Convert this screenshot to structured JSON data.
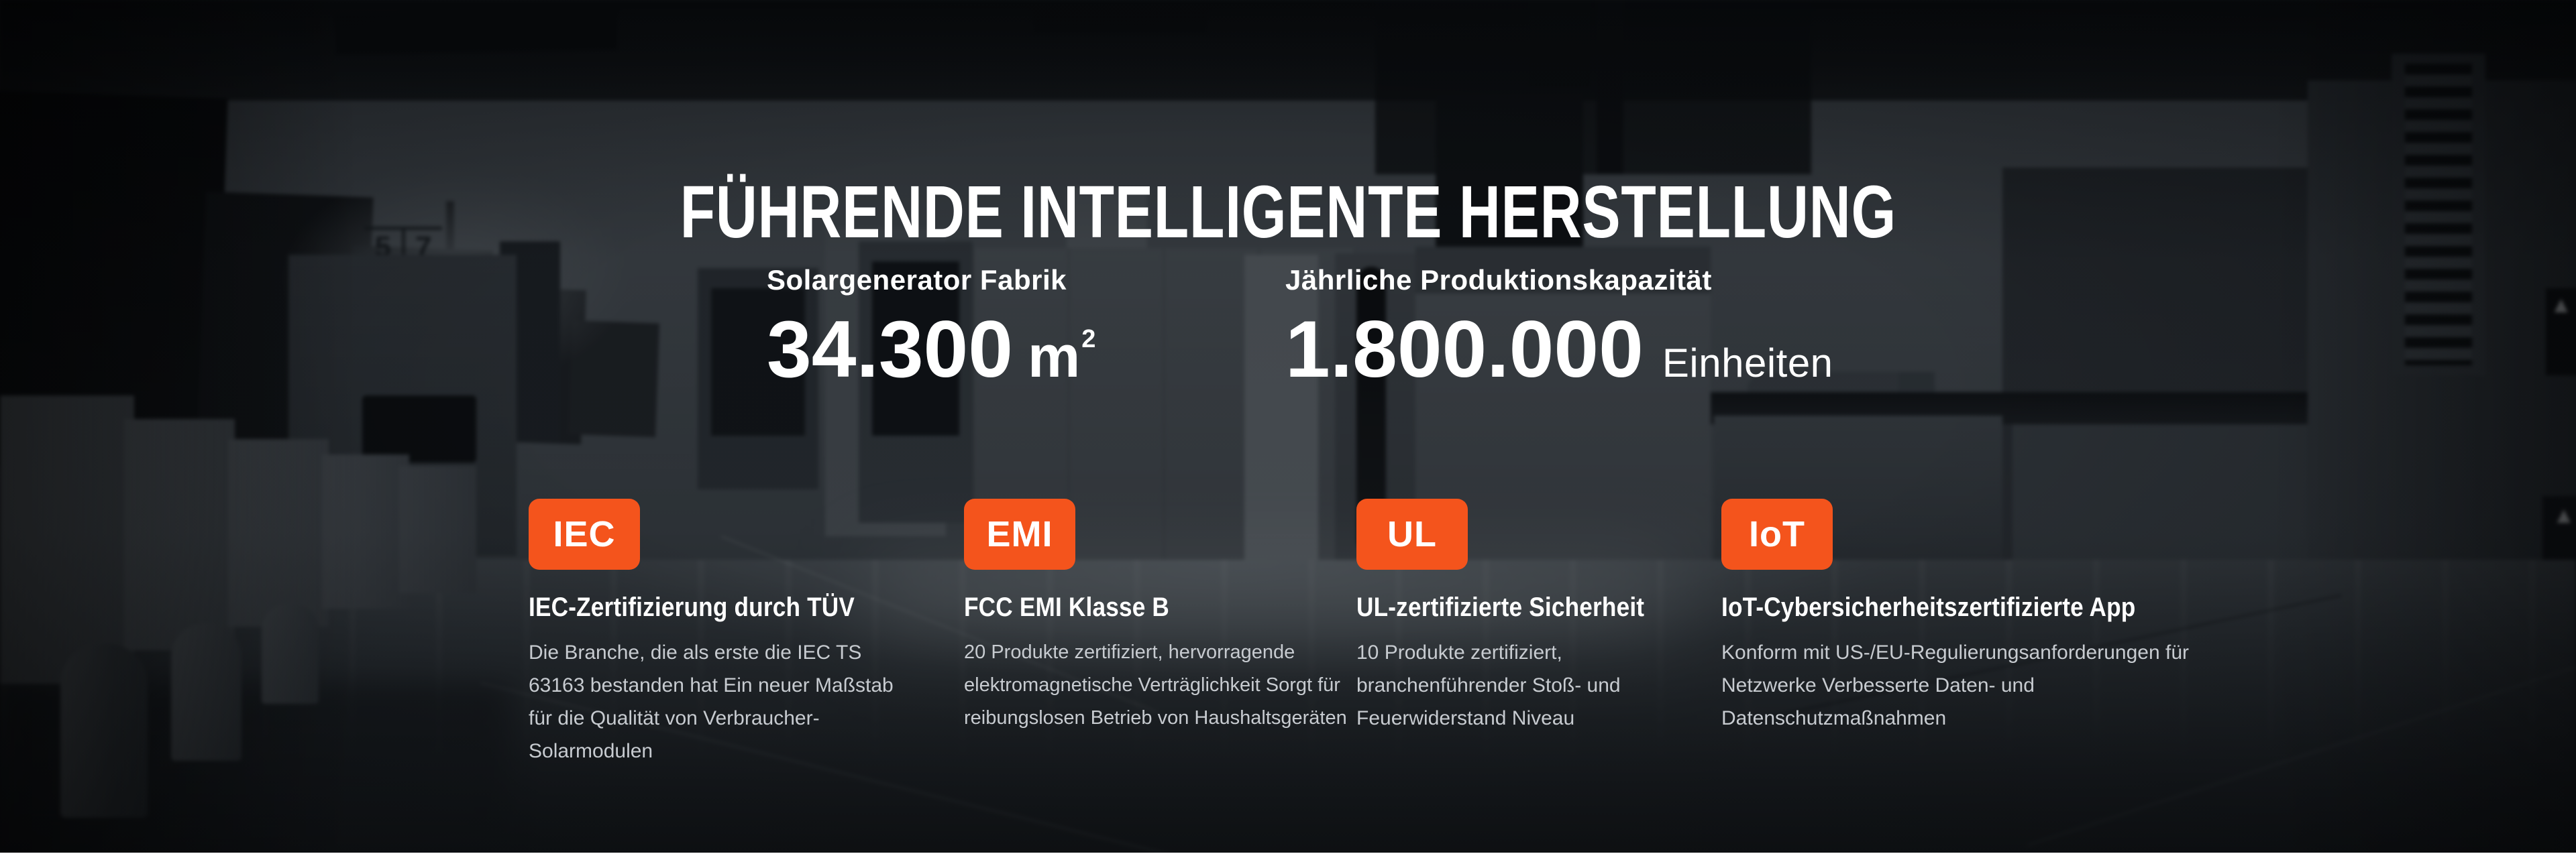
{
  "hero": {
    "title": "FÜHRENDE INTELLIGENTE HERSTELLUNG",
    "stats": [
      {
        "label": "Solargenerator Fabrik",
        "value": "34.300",
        "unit": "m",
        "unit_superscript": "2"
      },
      {
        "label": "Jährliche Produktionskapazität",
        "value": "1.800.000",
        "unit": "Einheiten"
      }
    ],
    "certifications": [
      {
        "badge": "IEC",
        "title": "IEC-Zertifizierung durch TÜV",
        "description": "Die Branche, die als erste die IEC TS 63163 bestanden hat Ein neuer Maßstab für die Qualität von Verbraucher-Solarmodulen"
      },
      {
        "badge": "EMI",
        "title": "FCC EMI Klasse B",
        "description": "20 Produkte zertifiziert, hervorragende elektromagnetische Verträglichkeit Sorgt für reibungslosen Betrieb von Haushaltsgeräten"
      },
      {
        "badge": "UL",
        "title": "UL-zertifizierte Sicherheit",
        "description": "10 Produkte zertifiziert, branchenführender Stoß- und Feuerwiderstand Niveau"
      },
      {
        "badge": "IoT",
        "title": "IoT-Cybersicherheitszertifizierte App",
        "description": "Konform mit US-/EU-Regulierungsanforderungen für Netzwerke Verbesserte Daten- und Datenschutzmaßnahmen"
      }
    ]
  },
  "background": {
    "wall_sign": {
      "left_number": "5",
      "right_number": "7"
    },
    "warning_icon": "▲"
  },
  "colors": {
    "accent": "#F4541C",
    "title_text": "#FFFFFF",
    "body_text": "#C7CBD0",
    "background_base": "#23272B",
    "bottom_strip": "#FFFFFF"
  }
}
